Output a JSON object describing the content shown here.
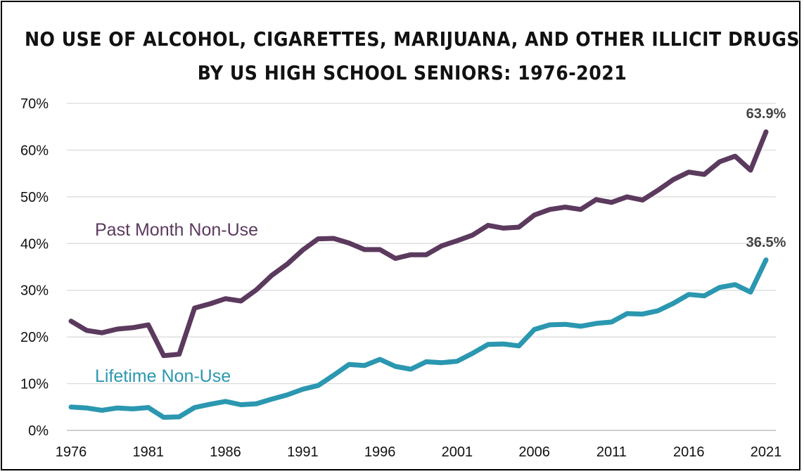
{
  "chart_data": {
    "type": "line",
    "title": "NO USE OF ALCOHOL, CIGARETTES, MARIJUANA, AND OTHER ILLICIT DRUGS",
    "subtitle": "BY US HIGH SCHOOL SENIORS: 1976-2021",
    "xlabel": "",
    "ylabel": "",
    "x": [
      1976,
      1977,
      1978,
      1979,
      1980,
      1981,
      1982,
      1983,
      1984,
      1985,
      1986,
      1987,
      1988,
      1989,
      1990,
      1991,
      1992,
      1993,
      1994,
      1995,
      1996,
      1997,
      1998,
      1999,
      2000,
      2001,
      2002,
      2003,
      2004,
      2005,
      2006,
      2007,
      2008,
      2009,
      2010,
      2011,
      2012,
      2013,
      2014,
      2015,
      2016,
      2017,
      2018,
      2019,
      2020,
      2021
    ],
    "x_ticks": [
      "1976",
      "1981",
      "1986",
      "1991",
      "1996",
      "2001",
      "2006",
      "2011",
      "2016",
      "2021"
    ],
    "y_ticks": [
      "0%",
      "10%",
      "20%",
      "30%",
      "40%",
      "50%",
      "60%",
      "70%"
    ],
    "ylim": [
      0,
      70
    ],
    "grid": true,
    "legend": "inline labels",
    "series": [
      {
        "name": "Past Month Non-Use",
        "color": "#5b3a5e",
        "values": [
          23.4,
          21.4,
          20.9,
          21.7,
          22.0,
          22.6,
          16.0,
          16.3,
          26.2,
          27.1,
          28.2,
          27.7,
          30.1,
          33.2,
          35.6,
          38.6,
          41.0,
          41.1,
          40.1,
          38.7,
          38.7,
          36.8,
          37.6,
          37.6,
          39.5,
          40.6,
          41.8,
          43.9,
          43.3,
          43.5,
          46.1,
          47.3,
          47.8,
          47.3,
          49.4,
          48.8,
          50.0,
          49.3,
          51.4,
          53.7,
          55.3,
          54.8,
          57.5,
          58.7,
          55.7,
          63.9
        ],
        "end_label": "63.9%"
      },
      {
        "name": "Lifetime Non-Use",
        "color": "#2b97b0",
        "values": [
          5.0,
          4.8,
          4.3,
          4.8,
          4.6,
          4.9,
          2.8,
          2.9,
          4.9,
          5.6,
          6.2,
          5.5,
          5.7,
          6.7,
          7.6,
          8.8,
          9.6,
          11.8,
          14.1,
          13.9,
          15.2,
          13.7,
          13.1,
          14.7,
          14.5,
          14.8,
          16.5,
          18.4,
          18.5,
          18.1,
          21.6,
          22.6,
          22.7,
          22.3,
          22.9,
          23.2,
          25.0,
          24.9,
          25.6,
          27.2,
          29.1,
          28.8,
          30.6,
          31.2,
          29.6,
          36.5
        ],
        "end_label": "36.5%"
      }
    ]
  }
}
